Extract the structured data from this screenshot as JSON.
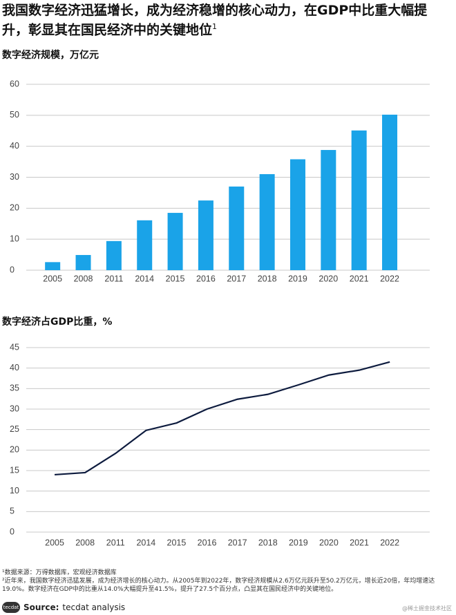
{
  "header": {
    "title": "我国数字经济迅猛增长，成为经济稳增的核心动力，在GDP中比重大幅提升，彰显其在国民经济中的关键地位",
    "title_note": "1"
  },
  "chart_data": [
    {
      "type": "bar",
      "title": "数字经济规模，万亿元",
      "categories": [
        "2005",
        "2008",
        "2011",
        "2014",
        "2015",
        "2016",
        "2017",
        "2018",
        "2019",
        "2020",
        "2021",
        "2022"
      ],
      "values": [
        2.6,
        4.9,
        9.4,
        16.1,
        18.5,
        22.5,
        27.0,
        31.0,
        35.8,
        38.8,
        45.1,
        50.2
      ],
      "color": "#1aa3e8",
      "ylim": [
        0,
        60
      ],
      "yticks": [
        0,
        10,
        20,
        30,
        40,
        50,
        60
      ],
      "grid": true
    },
    {
      "type": "line",
      "title": "数字经济占GDP比重，%",
      "categories": [
        "2005",
        "2008",
        "2011",
        "2014",
        "2015",
        "2016",
        "2017",
        "2018",
        "2019",
        "2020",
        "2021",
        "2022"
      ],
      "values": [
        14.0,
        14.5,
        19.2,
        24.8,
        26.6,
        30.0,
        32.4,
        33.6,
        35.9,
        38.3,
        39.5,
        41.5
      ],
      "color": "#0d1b3e",
      "ylim": [
        0,
        45
      ],
      "yticks": [
        0,
        5,
        10,
        15,
        20,
        25,
        30,
        35,
        40,
        45
      ],
      "grid": true
    }
  ],
  "footnotes": [
    "¹数据来源：万得数据库，宏观经济数据库",
    "²近年来，我国数字经济迅猛发展，成为经济增长的核心动力。从2005年到2022年，数字经济规模从2.6万亿元跃升至50.2万亿元，增长近20倍，年均增速达19.0%。数字经济在GDP中的比重从14.0%大幅提升至41.5%，提升了27.5个百分点，凸显其在国民经济中的关键地位。"
  ],
  "source": {
    "label": "Source:",
    "text": "tecdat analysis"
  },
  "logo": "tecdat",
  "watermark": "@稀土掘金技术社区"
}
